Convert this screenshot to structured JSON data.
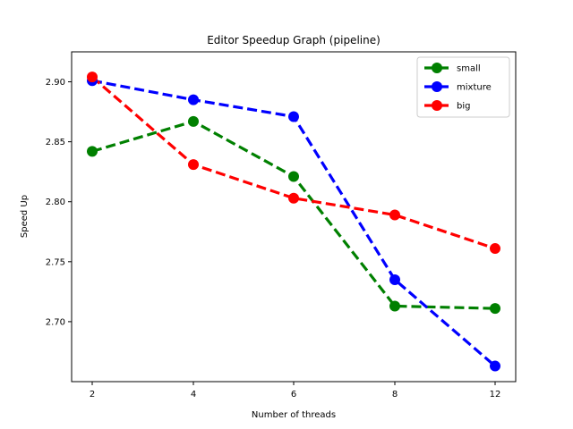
{
  "chart_data": {
    "type": "line",
    "title": "Editor Speedup Graph (pipeline)",
    "xlabel": "Number of threads",
    "ylabel": "Speed Up",
    "categories": [
      "2",
      "4",
      "6",
      "8",
      "12"
    ],
    "ylim": [
      2.65,
      2.925
    ],
    "yticks": [
      "2.70",
      "2.75",
      "2.80",
      "2.85",
      "2.90"
    ],
    "grid": false,
    "legend_position": "top-right",
    "series": [
      {
        "name": "small",
        "color": "#008000",
        "values": [
          2.842,
          2.867,
          2.821,
          2.713,
          2.711
        ]
      },
      {
        "name": "mixture",
        "color": "#0000ff",
        "values": [
          2.901,
          2.885,
          2.871,
          2.735,
          2.663
        ]
      },
      {
        "name": "big",
        "color": "#ff0000",
        "values": [
          2.904,
          2.831,
          2.803,
          2.789,
          2.761
        ]
      }
    ]
  }
}
